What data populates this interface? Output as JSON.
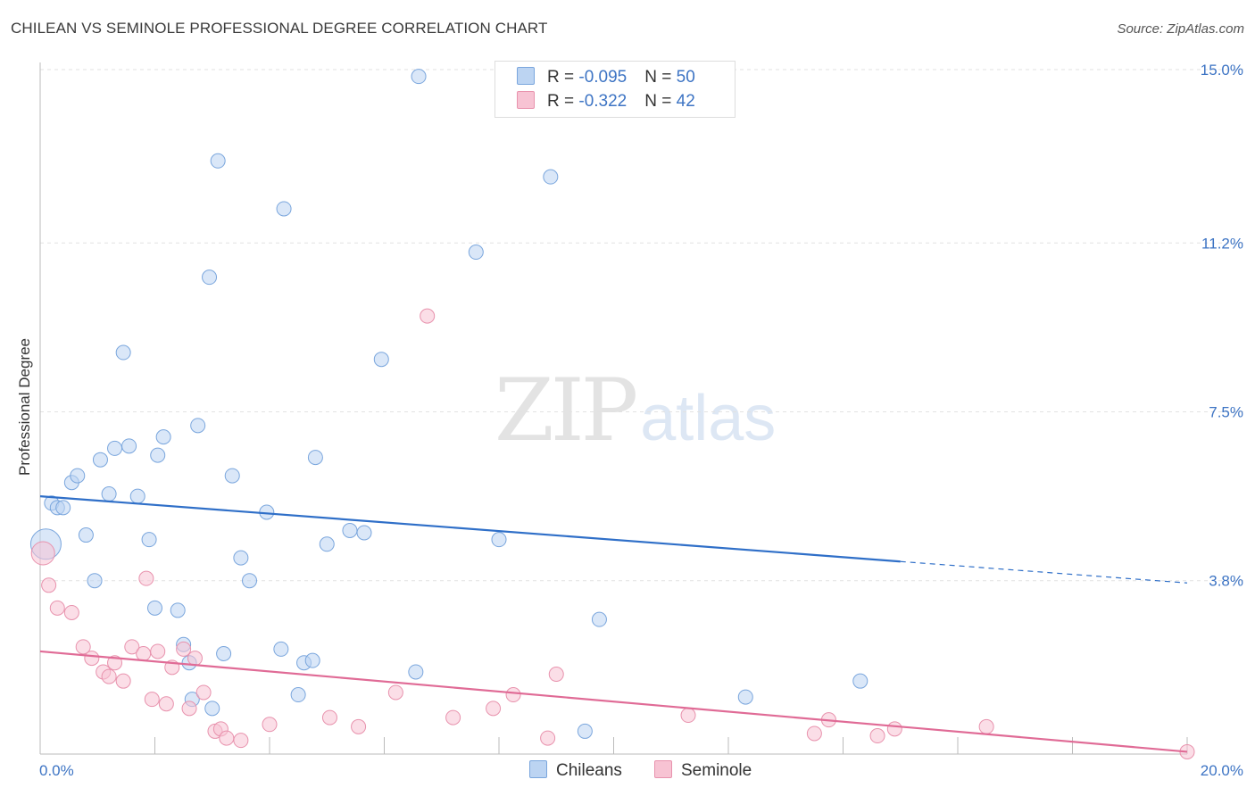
{
  "title": "CHILEAN VS SEMINOLE PROFESSIONAL DEGREE CORRELATION CHART",
  "source": "Source: ZipAtlas.com",
  "watermark": {
    "zip": "ZIP",
    "atlas": "atlas"
  },
  "colors": {
    "blue_fill": "#bcd4f2",
    "blue_edge": "#7aa6dd",
    "blue_line": "#2f6fc8",
    "pink_fill": "#f7c3d3",
    "pink_edge": "#e892ad",
    "pink_line": "#e06b96",
    "tick_text": "#3d74c4",
    "grid": "#e2e2e2"
  },
  "legend": {
    "rows": [
      {
        "r_label": "R = ",
        "r_value": "-0.095",
        "n_label": "N = ",
        "n_value": "50"
      },
      {
        "r_label": "R = ",
        "r_value": "-0.322",
        "n_label": "N = ",
        "n_value": "42"
      }
    ]
  },
  "bottom_legend": [
    "Chileans",
    "Seminole"
  ],
  "chart_data": {
    "type": "scatter",
    "title": "CHILEAN VS SEMINOLE PROFESSIONAL DEGREE CORRELATION CHART",
    "xlabel": "",
    "ylabel": "Professional Degree",
    "xlim": [
      0,
      20
    ],
    "ylim": [
      0,
      15.4
    ],
    "x_tick_labels": [
      "0.0%",
      "20.0%"
    ],
    "y_ticks": [
      3.8,
      7.5,
      11.2,
      15.0
    ],
    "y_tick_labels": [
      "3.8%",
      "7.5%",
      "11.2%",
      "15.0%"
    ],
    "grid": true,
    "legend_position": "top-center",
    "series": [
      {
        "name": "Chileans",
        "R": -0.095,
        "N": 50,
        "trend": {
          "x0": 0.0,
          "y0": 5.65,
          "x1": 15.0,
          "y1": 4.22,
          "dashed_to_x": 20.0,
          "dashed_to_y": 3.75
        },
        "points": [
          [
            0.1,
            4.6,
            3
          ],
          [
            0.2,
            5.5,
            1
          ],
          [
            0.3,
            5.4,
            1
          ],
          [
            0.4,
            5.4,
            1
          ],
          [
            0.55,
            5.95,
            1
          ],
          [
            0.65,
            6.1,
            1
          ],
          [
            0.8,
            4.8,
            1
          ],
          [
            0.95,
            3.8,
            1
          ],
          [
            1.05,
            6.45,
            1
          ],
          [
            1.2,
            5.7,
            1
          ],
          [
            1.3,
            6.7,
            1
          ],
          [
            1.45,
            8.8,
            1
          ],
          [
            1.55,
            6.75,
            1
          ],
          [
            1.7,
            5.65,
            1
          ],
          [
            1.9,
            4.7,
            1
          ],
          [
            2.0,
            3.2,
            1
          ],
          [
            2.05,
            6.55,
            1
          ],
          [
            2.15,
            6.95,
            1
          ],
          [
            2.4,
            3.15,
            1
          ],
          [
            2.5,
            2.4,
            1
          ],
          [
            2.6,
            2.0,
            1
          ],
          [
            2.65,
            1.2,
            1
          ],
          [
            2.75,
            7.2,
            1
          ],
          [
            2.95,
            10.45,
            1
          ],
          [
            3.1,
            13.0,
            1
          ],
          [
            3.0,
            1.0,
            1
          ],
          [
            3.2,
            2.2,
            1
          ],
          [
            3.35,
            6.1,
            1
          ],
          [
            3.5,
            4.3,
            1
          ],
          [
            3.65,
            3.8,
            1
          ],
          [
            3.95,
            5.3,
            1
          ],
          [
            4.2,
            2.3,
            1
          ],
          [
            4.25,
            11.95,
            1
          ],
          [
            4.5,
            1.3,
            1
          ],
          [
            4.6,
            2.0,
            1
          ],
          [
            4.75,
            2.05,
            1
          ],
          [
            4.8,
            6.5,
            1
          ],
          [
            5.0,
            4.6,
            1
          ],
          [
            5.4,
            4.9,
            1
          ],
          [
            5.65,
            4.85,
            1
          ],
          [
            5.95,
            8.65,
            1
          ],
          [
            6.55,
            1.8,
            1
          ],
          [
            6.6,
            14.85,
            1
          ],
          [
            7.6,
            11.0,
            1
          ],
          [
            8.0,
            4.7,
            1
          ],
          [
            8.9,
            12.65,
            1
          ],
          [
            9.5,
            0.5,
            1
          ],
          [
            9.75,
            2.95,
            1
          ],
          [
            12.3,
            1.25,
            1
          ],
          [
            14.3,
            1.6,
            1
          ]
        ]
      },
      {
        "name": "Seminole",
        "R": -0.322,
        "N": 42,
        "trend": {
          "x0": 0.0,
          "y0": 2.25,
          "x1": 20.0,
          "y1": 0.05
        },
        "points": [
          [
            0.05,
            4.4,
            2
          ],
          [
            0.15,
            3.7,
            1
          ],
          [
            0.3,
            3.2,
            1
          ],
          [
            0.55,
            3.1,
            1
          ],
          [
            0.75,
            2.35,
            1
          ],
          [
            0.9,
            2.1,
            1
          ],
          [
            1.1,
            1.8,
            1
          ],
          [
            1.2,
            1.7,
            1
          ],
          [
            1.3,
            2.0,
            1
          ],
          [
            1.45,
            1.6,
            1
          ],
          [
            1.6,
            2.35,
            1
          ],
          [
            1.8,
            2.2,
            1
          ],
          [
            1.85,
            3.85,
            1
          ],
          [
            1.95,
            1.2,
            1
          ],
          [
            2.05,
            2.25,
            1
          ],
          [
            2.2,
            1.1,
            1
          ],
          [
            2.3,
            1.9,
            1
          ],
          [
            2.5,
            2.3,
            1
          ],
          [
            2.6,
            1.0,
            1
          ],
          [
            2.7,
            2.1,
            1
          ],
          [
            2.85,
            1.35,
            1
          ],
          [
            3.05,
            0.5,
            1
          ],
          [
            3.15,
            0.55,
            1
          ],
          [
            3.25,
            0.35,
            1
          ],
          [
            3.5,
            0.3,
            1
          ],
          [
            4.0,
            0.65,
            1
          ],
          [
            5.05,
            0.8,
            1
          ],
          [
            5.55,
            0.6,
            1
          ],
          [
            6.2,
            1.35,
            1
          ],
          [
            6.75,
            9.6,
            1
          ],
          [
            7.2,
            0.8,
            1
          ],
          [
            7.9,
            1.0,
            1
          ],
          [
            8.25,
            1.3,
            1
          ],
          [
            8.85,
            0.35,
            1
          ],
          [
            9.0,
            1.75,
            1
          ],
          [
            11.3,
            0.85,
            1
          ],
          [
            13.5,
            0.45,
            1
          ],
          [
            13.75,
            0.75,
            1
          ],
          [
            14.6,
            0.4,
            1
          ],
          [
            14.9,
            0.55,
            1
          ],
          [
            16.5,
            0.6,
            1
          ],
          [
            20.0,
            0.05,
            1
          ]
        ]
      }
    ]
  }
}
